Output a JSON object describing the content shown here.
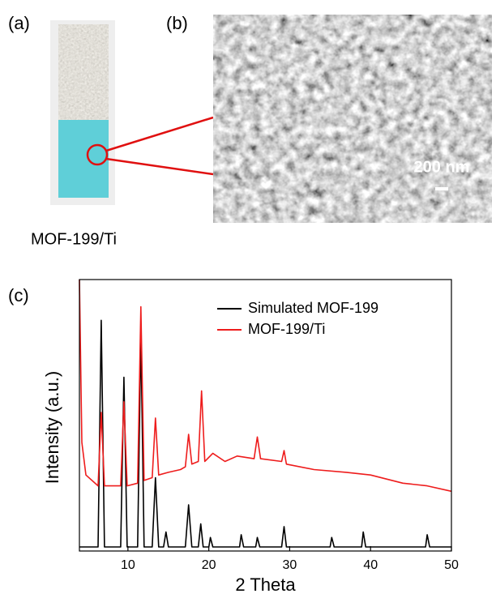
{
  "panels": {
    "a": "(a)",
    "b": "(b)",
    "c": "(c)"
  },
  "sample_caption": "MOF-199/Ti",
  "scale_bar": "200 nm",
  "chart_data": {
    "type": "line",
    "x_label": "2 Theta",
    "y_label": "Intensity (a.u.)",
    "xlim": [
      4,
      50
    ],
    "ylim": [
      0,
      100
    ],
    "xticks": [
      10,
      20,
      30,
      40,
      50
    ],
    "legend": "upper right",
    "series": [
      {
        "name": "Simulated MOF-199",
        "color": "#000000",
        "x": [
          4,
          6.3,
          6.7,
          7.1,
          9.1,
          9.5,
          9.9,
          11.2,
          11.6,
          12.0,
          13.0,
          13.4,
          13.8,
          14.4,
          14.7,
          15.0,
          17.1,
          17.5,
          17.9,
          18.7,
          19.0,
          19.3,
          20.0,
          20.2,
          20.5,
          23.8,
          24.0,
          24.3,
          25.8,
          26.0,
          26.3,
          29.0,
          29.3,
          29.6,
          35.0,
          35.2,
          35.5,
          38.9,
          39.1,
          39.4,
          46.8,
          47.0,
          47.3,
          50
        ],
        "values": [
          1.5,
          1.5,
          85,
          1.5,
          1.5,
          64,
          1.5,
          1.5,
          80,
          1.5,
          1.5,
          27,
          1.5,
          1.5,
          7,
          1.5,
          1.5,
          17,
          1.5,
          1.5,
          10,
          1.5,
          1.5,
          5,
          1.5,
          1.5,
          6,
          1.5,
          1.5,
          5,
          1.5,
          1.5,
          9,
          1.5,
          1.5,
          5,
          1.5,
          1.5,
          7,
          1.5,
          1.5,
          6,
          1.5,
          1.5
        ]
      },
      {
        "name": "MOF-199/Ti",
        "color": "#ee1c1c",
        "x": [
          4,
          4.3,
          4.8,
          6.3,
          6.7,
          7.1,
          9.1,
          9.5,
          9.9,
          11.2,
          11.6,
          12.0,
          13.0,
          13.4,
          13.8,
          15,
          16.5,
          17.1,
          17.5,
          17.9,
          18.7,
          19.1,
          19.5,
          20.5,
          22,
          23.5,
          25.6,
          26,
          26.4,
          29,
          29.3,
          29.6,
          33,
          37,
          40,
          44,
          47,
          50
        ],
        "values": [
          100,
          40,
          28,
          24,
          51,
          24,
          24,
          55,
          24,
          25,
          90,
          26,
          27,
          49,
          28,
          29,
          30,
          31,
          43,
          32,
          33,
          59,
          33,
          36,
          33,
          35,
          34,
          42,
          34,
          33,
          37,
          32,
          30,
          29,
          28,
          25,
          24,
          22
        ]
      }
    ]
  }
}
